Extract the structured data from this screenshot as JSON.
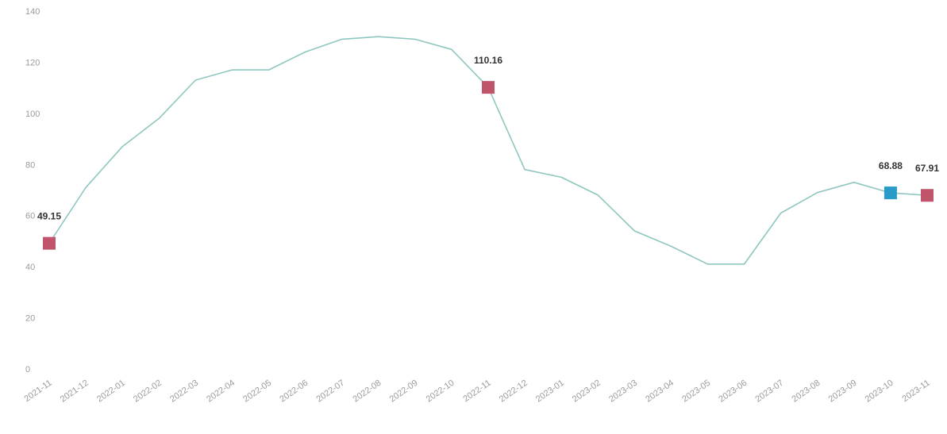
{
  "chart_data": {
    "type": "line",
    "title": "",
    "xlabel": "",
    "ylabel": "",
    "x": [
      "2021-11",
      "2021-12",
      "2022-01",
      "2022-02",
      "2022-03",
      "2022-04",
      "2022-05",
      "2022-06",
      "2022-07",
      "2022-08",
      "2022-09",
      "2022-10",
      "2022-11",
      "2022-12",
      "2023-01",
      "2023-02",
      "2023-03",
      "2023-04",
      "2023-05",
      "2023-06",
      "2023-07",
      "2023-08",
      "2023-09",
      "2023-10",
      "2023-11"
    ],
    "series": [
      {
        "values": [
          49.15,
          71,
          87,
          98,
          113,
          117,
          117,
          124,
          129,
          130,
          129,
          125,
          110.16,
          78,
          75,
          68,
          54,
          48,
          41,
          41,
          61,
          69,
          73,
          68.88,
          67.91
        ]
      }
    ],
    "ylim": [
      0,
      140
    ],
    "yticks": [
      0,
      20,
      40,
      60,
      80,
      100,
      120,
      140
    ],
    "grid": false,
    "legend": "none",
    "line_color": "#8fc7c0",
    "markers": [
      {
        "index": 0,
        "label": "49.15",
        "color": "#c0546b"
      },
      {
        "index": 12,
        "label": "110.16",
        "color": "#c0546b"
      },
      {
        "index": 23,
        "label": "68.88",
        "color": "#2a9bc8"
      },
      {
        "index": 24,
        "label": "67.91",
        "color": "#c0546b"
      }
    ]
  }
}
